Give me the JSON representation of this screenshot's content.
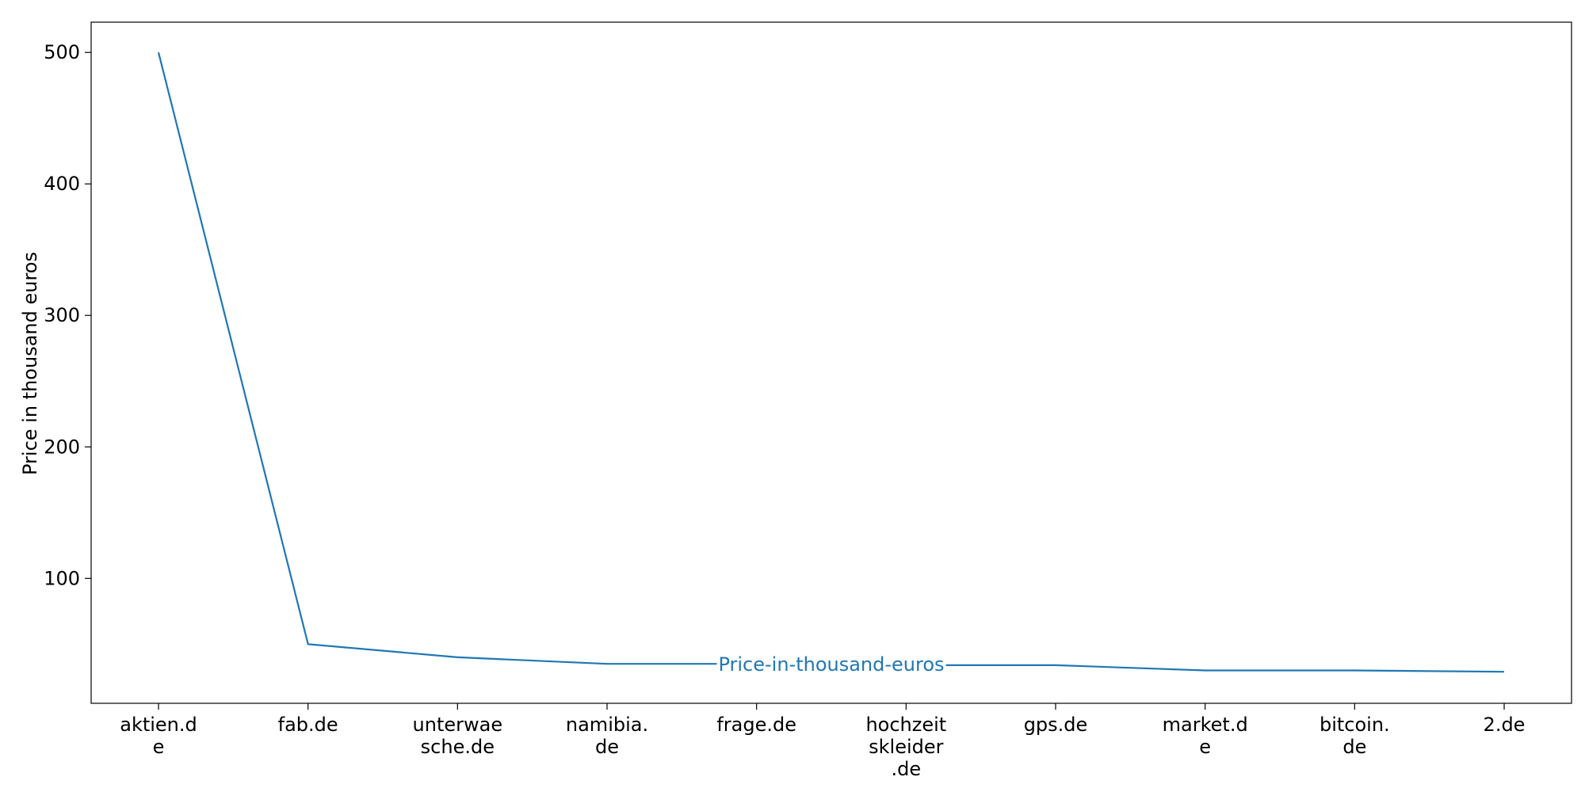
{
  "chart_data": {
    "type": "line",
    "title": "",
    "xlabel": "",
    "ylabel": "Price in thousand euros",
    "categories": [
      "aktien.d\ne",
      "fab.de",
      "unterwae\nsche.de",
      "namibia.\nde",
      "frage.de",
      "hochzeit\nskleider\n.de",
      "gps.de",
      "market.d\ne",
      "bitcoin.\nde",
      "2.de"
    ],
    "series": [
      {
        "name": "Price-in-thousand-euros",
        "values": [
          500,
          50,
          40,
          35,
          35,
          34,
          34,
          30,
          30,
          29
        ]
      }
    ],
    "y_ticks": [
      "100",
      "200",
      "300",
      "400",
      "500"
    ],
    "ylim": [
      5,
      523
    ],
    "grid": false,
    "inline_label": "Price-in-thousand-euros",
    "colors": {
      "series": "#1f77b4"
    }
  }
}
